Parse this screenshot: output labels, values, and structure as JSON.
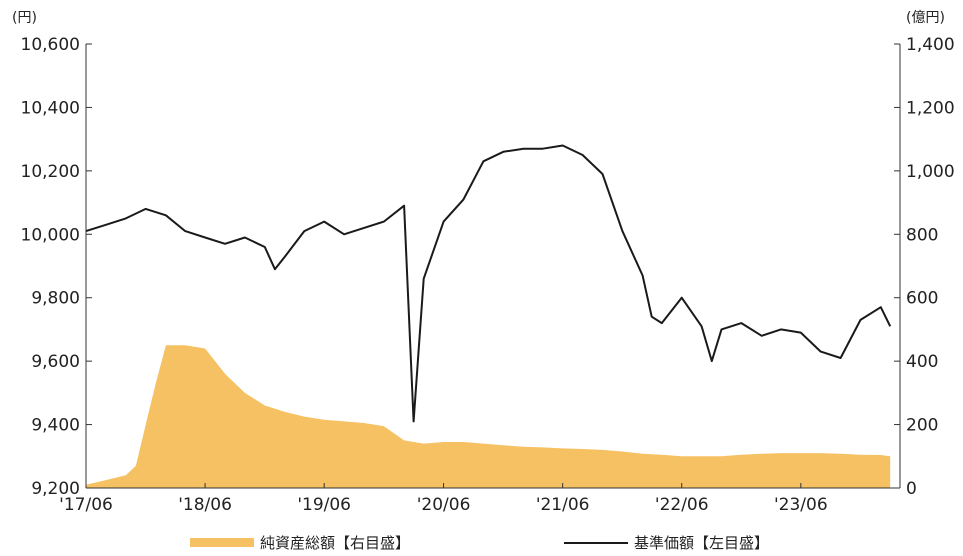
{
  "chart_data": {
    "type": "line",
    "left_axis": {
      "unit": "(円)",
      "ticks": [
        "9,200",
        "9,400",
        "9,600",
        "9,800",
        "10,000",
        "10,200",
        "10,400",
        "10,600"
      ],
      "ylim": [
        9200,
        10600
      ]
    },
    "right_axis": {
      "unit": "(億円)",
      "ticks": [
        "0",
        "200",
        "400",
        "600",
        "800",
        "1,000",
        "1,200",
        "1,400"
      ],
      "ylim": [
        0,
        1400
      ]
    },
    "x_ticks": [
      "'17/06",
      "'18/06",
      "'19/06",
      "'20/06",
      "'21/06",
      "'22/06",
      "'23/06"
    ],
    "colors": {
      "nav_line": "#1a1a1a",
      "assets_area": "#f6c163"
    },
    "series": [
      {
        "name": "基準価額【左目盛】",
        "axis": "left",
        "style": "line",
        "x": [
          "2017-06",
          "2017-08",
          "2017-10",
          "2017-12",
          "2018-02",
          "2018-04",
          "2018-06",
          "2018-08",
          "2018-10",
          "2018-12",
          "2019-01",
          "2019-02",
          "2019-04",
          "2019-06",
          "2019-08",
          "2019-10",
          "2019-12",
          "2020-02",
          "2020-03",
          "2020-04",
          "2020-06",
          "2020-08",
          "2020-10",
          "2020-12",
          "2021-02",
          "2021-04",
          "2021-06",
          "2021-08",
          "2021-10",
          "2021-12",
          "2022-02",
          "2022-03",
          "2022-04",
          "2022-06",
          "2022-08",
          "2022-09",
          "2022-10",
          "2022-12",
          "2023-02",
          "2023-04",
          "2023-06",
          "2023-08",
          "2023-10",
          "2023-12",
          "2024-02",
          "2024-03"
        ],
        "values": [
          10010,
          10030,
          10050,
          10080,
          10060,
          10010,
          9990,
          9970,
          9990,
          9960,
          9890,
          9930,
          10010,
          10040,
          10000,
          10020,
          10040,
          10090,
          9410,
          9860,
          10040,
          10110,
          10230,
          10260,
          10270,
          10270,
          10280,
          10250,
          10190,
          10010,
          9870,
          9740,
          9720,
          9800,
          9710,
          9600,
          9700,
          9720,
          9680,
          9700,
          9690,
          9630,
          9610,
          9730,
          9770,
          9710
        ]
      },
      {
        "name": "純資産総額【右目盛】",
        "axis": "right",
        "style": "area",
        "x": [
          "2017-06",
          "2017-08",
          "2017-10",
          "2017-11",
          "2017-12",
          "2018-01",
          "2018-02",
          "2018-04",
          "2018-06",
          "2018-08",
          "2018-10",
          "2018-12",
          "2019-02",
          "2019-04",
          "2019-06",
          "2019-08",
          "2019-10",
          "2019-12",
          "2020-02",
          "2020-04",
          "2020-06",
          "2020-08",
          "2020-10",
          "2020-12",
          "2021-02",
          "2021-04",
          "2021-06",
          "2021-08",
          "2021-10",
          "2021-12",
          "2022-02",
          "2022-04",
          "2022-06",
          "2022-08",
          "2022-10",
          "2022-12",
          "2023-02",
          "2023-04",
          "2023-06",
          "2023-08",
          "2023-10",
          "2023-12",
          "2024-02",
          "2024-03"
        ],
        "values": [
          10,
          25,
          40,
          70,
          200,
          330,
          450,
          450,
          440,
          360,
          300,
          260,
          240,
          225,
          215,
          210,
          205,
          195,
          150,
          140,
          145,
          145,
          140,
          135,
          130,
          128,
          125,
          123,
          120,
          115,
          108,
          105,
          100,
          100,
          100,
          105,
          108,
          110,
          110,
          110,
          108,
          105,
          104,
          100
        ]
      }
    ]
  },
  "legend": {
    "assets_label": "純資産総額【右目盛】",
    "nav_label": "基準価額【左目盛】"
  }
}
